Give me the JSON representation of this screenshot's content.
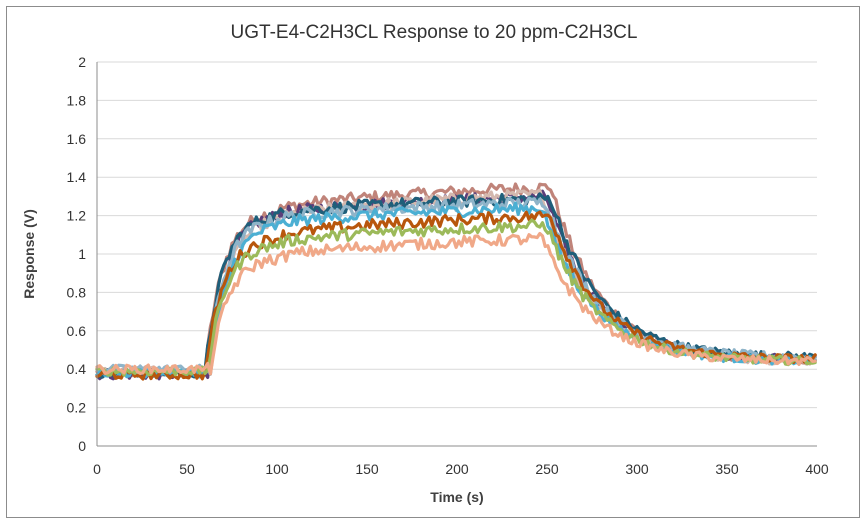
{
  "chart_data": {
    "type": "line",
    "title": "UGT-E4-C2H3CL Response to 20 ppm-C2H3CL",
    "xlabel": "Time (s)",
    "ylabel": "Response (V)",
    "xlim": [
      0,
      400
    ],
    "ylim": [
      0,
      2
    ],
    "xticks": [
      "0",
      "50",
      "100",
      "150",
      "200",
      "250",
      "300",
      "350",
      "400"
    ],
    "yticks": [
      "0",
      "0.2",
      "0.4",
      "0.6",
      "0.8",
      "1",
      "1.2",
      "1.4",
      "1.6",
      "1.8",
      "2"
    ],
    "grid": "horizontal",
    "legend": "none",
    "series": [
      {
        "color": "#c0847a",
        "baseline": 0.38,
        "plateau_start": 1.22,
        "plateau_end": 1.35,
        "recovery": 0.44
      },
      {
        "color": "#5b3e7a",
        "baseline": 0.37,
        "plateau_start": 1.2,
        "plateau_end": 1.3,
        "recovery": 0.45
      },
      {
        "color": "#d4b8ae",
        "baseline": 0.39,
        "plateau_start": 1.18,
        "plateau_end": 1.31,
        "recovery": 0.44
      },
      {
        "color": "#1f5f7a",
        "baseline": 0.38,
        "plateau_start": 1.2,
        "plateau_end": 1.29,
        "recovery": 0.46
      },
      {
        "color": "#8fb4c9",
        "baseline": 0.4,
        "plateau_start": 1.18,
        "plateau_end": 1.27,
        "recovery": 0.46
      },
      {
        "color": "#4bafd3",
        "baseline": 0.38,
        "plateau_start": 1.15,
        "plateau_end": 1.24,
        "recovery": 0.44
      },
      {
        "color": "#b8560c",
        "baseline": 0.37,
        "plateau_start": 1.08,
        "plateau_end": 1.2,
        "recovery": 0.45
      },
      {
        "color": "#9cba5a",
        "baseline": 0.39,
        "plateau_start": 1.05,
        "plateau_end": 1.15,
        "recovery": 0.44
      },
      {
        "color": "#f0a888",
        "baseline": 0.4,
        "plateau_start": 0.98,
        "plateau_end": 1.08,
        "recovery": 0.44
      }
    ],
    "time_points": {
      "rise_start": 60,
      "rise_end": 100,
      "fall_start": 252,
      "fall_mid": 300,
      "end": 400
    }
  }
}
